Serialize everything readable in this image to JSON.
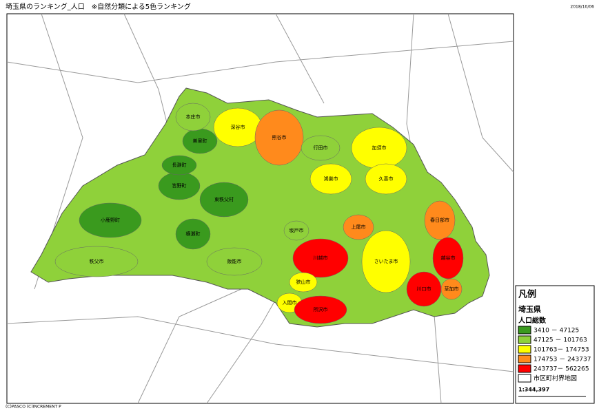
{
  "header": {
    "title": "埼玉県のランキング_人口　※自然分類による5色ランキング",
    "date": "2018/10/06"
  },
  "legend": {
    "heading": "凡例",
    "region": "埼玉県",
    "indicator": "人口総数",
    "classes": [
      {
        "label": "3410 － 47125",
        "color": "#3a9a1e"
      },
      {
        "label": "47125 － 101763",
        "color": "#8fd13a"
      },
      {
        "label": "101763－ 174753",
        "color": "#ffff00"
      },
      {
        "label": "174753 － 243737",
        "color": "#ff8a1c"
      },
      {
        "label": "243737－ 562265",
        "color": "#ff0000"
      }
    ],
    "boundary": "市区町村界地図",
    "scale": "1:344,397"
  },
  "map": {
    "municipalities": [
      {
        "name": "秩父市",
        "class": 1
      },
      {
        "name": "小鹿野町",
        "class": 0
      },
      {
        "name": "横瀬町",
        "class": 0
      },
      {
        "name": "東秩父村",
        "class": 0
      },
      {
        "name": "皆野町",
        "class": 0
      },
      {
        "name": "長瀞町",
        "class": 0
      },
      {
        "name": "美里町",
        "class": 0
      },
      {
        "name": "本庄市",
        "class": 1
      },
      {
        "name": "深谷市",
        "class": 2
      },
      {
        "name": "熊谷市",
        "class": 3
      },
      {
        "name": "行田市",
        "class": 1
      },
      {
        "name": "鴻巣市",
        "class": 2
      },
      {
        "name": "加須市",
        "class": 2
      },
      {
        "name": "久喜市",
        "class": 2
      },
      {
        "name": "上尾市",
        "class": 3
      },
      {
        "name": "春日部市",
        "class": 3
      },
      {
        "name": "飯能市",
        "class": 1
      },
      {
        "name": "坂戸市",
        "class": 1
      },
      {
        "name": "川越市",
        "class": 4
      },
      {
        "name": "狭山市",
        "class": 2
      },
      {
        "name": "入間市",
        "class": 2
      },
      {
        "name": "所沢市",
        "class": 4
      },
      {
        "name": "越谷市",
        "class": 4
      },
      {
        "name": "草加市",
        "class": 3
      },
      {
        "name": "川口市",
        "class": 4
      },
      {
        "name": "さいたま市",
        "class": 2
      }
    ]
  },
  "footer": {
    "copyright": "(C)PASCO (C)INCREMENT P"
  }
}
